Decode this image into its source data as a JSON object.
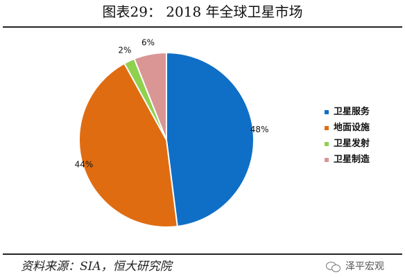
{
  "header": {
    "title": "图表29：  2018 年全球卫星市场"
  },
  "footer": {
    "source": "资料来源：SIA，恒大研究院",
    "watermark": "泽平宏观"
  },
  "chart_data": {
    "type": "pie",
    "title": "图表29：  2018 年全球卫星市场",
    "categories": [
      "卫星服务",
      "地面设施",
      "卫星发射",
      "卫星制造"
    ],
    "values": [
      48,
      44,
      2,
      6
    ],
    "labels": [
      "48%",
      "44%",
      "2%",
      "6%"
    ],
    "colors": [
      "#0f6fc6",
      "#e06c12",
      "#8fd14f",
      "#d99694"
    ],
    "start_angle": "12 o'clock",
    "direction": "clockwise",
    "legend_position": "right"
  }
}
